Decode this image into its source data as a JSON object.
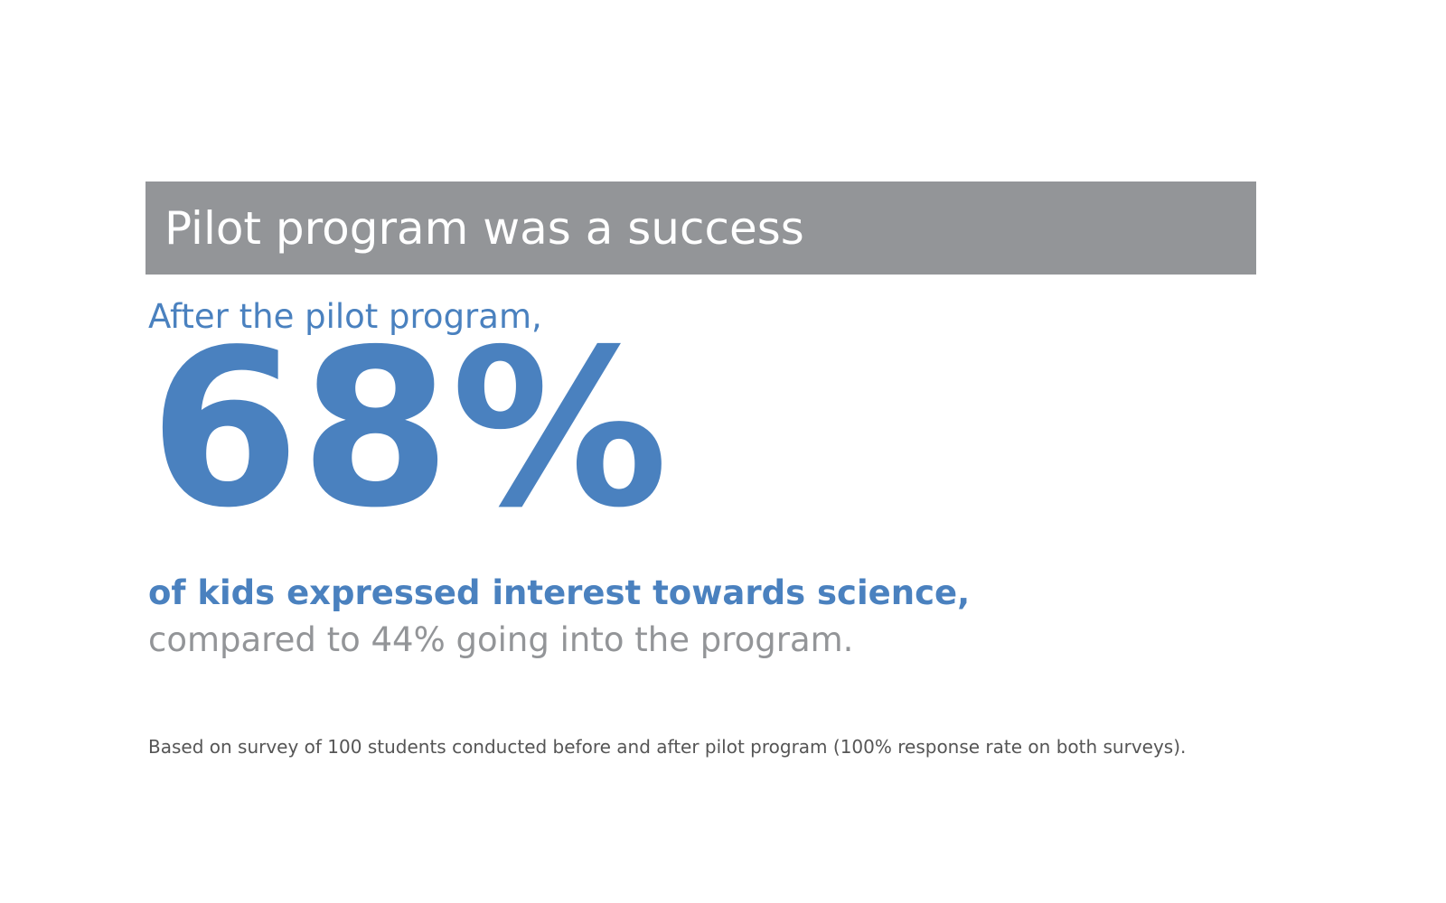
{
  "title": "Pilot program was a success",
  "lead": "After the pilot program,",
  "stat": {
    "value": "68%",
    "highlight": "of kids expressed interest towards science,",
    "comparison": "compared to 44% going into the program."
  },
  "footnote": "Based on survey of 100 students conducted before and after pilot program (100% response rate on both surveys).",
  "colors": {
    "accent": "#4a81bf",
    "title_bar": "#939598",
    "muted": "#939598",
    "footnote": "#555555"
  }
}
